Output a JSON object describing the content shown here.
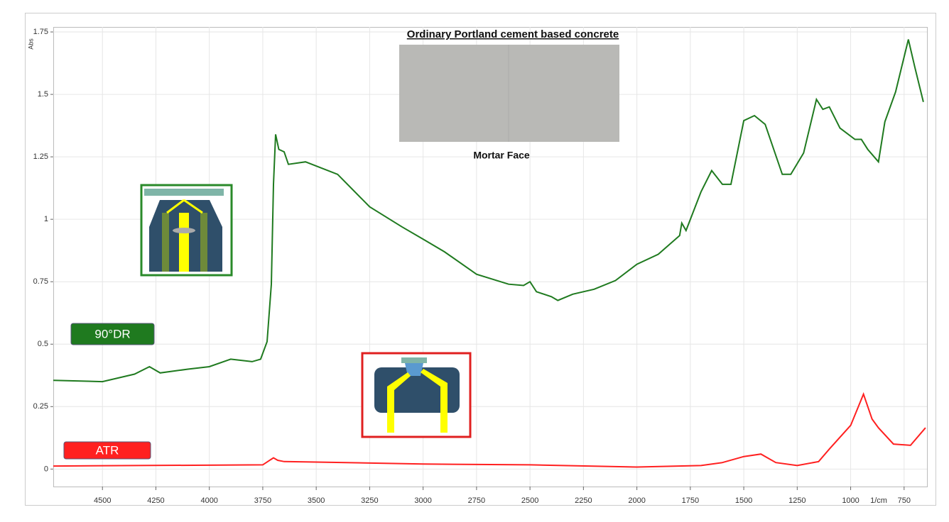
{
  "chart_data": {
    "type": "line",
    "title": "Ordinary Portland cement based concrete",
    "annotation": "Mortar Face",
    "y_label": "Abs",
    "x_label": "1/cm",
    "xlim": [
      4730,
      643
    ],
    "ylim": [
      -0.07,
      1.77
    ],
    "xticks": [
      4500,
      4250,
      4000,
      3750,
      3500,
      3250,
      3000,
      2750,
      2500,
      2250,
      2000,
      1750,
      1500,
      1250,
      1000,
      750
    ],
    "yticks": [
      0,
      0.25,
      0.5,
      0.75,
      1,
      1.25,
      1.5,
      1.75
    ],
    "grid": true,
    "series": [
      {
        "name": "90°DR",
        "color": "#1f7a1f",
        "x": [
          4730,
          4500,
          4350,
          4280,
          4230,
          4100,
          4000,
          3900,
          3800,
          3760,
          3730,
          3710,
          3700,
          3690,
          3675,
          3650,
          3630,
          3550,
          3400,
          3250,
          3100,
          3000,
          2900,
          2750,
          2600,
          2530,
          2500,
          2470,
          2400,
          2370,
          2300,
          2200,
          2100,
          2000,
          1900,
          1800,
          1790,
          1770,
          1700,
          1650,
          1600,
          1560,
          1500,
          1450,
          1400,
          1320,
          1280,
          1220,
          1160,
          1130,
          1100,
          1050,
          980,
          950,
          920,
          870,
          840,
          790,
          730,
          700,
          660
        ],
        "values": [
          0.355,
          0.35,
          0.38,
          0.41,
          0.385,
          0.4,
          0.41,
          0.44,
          0.43,
          0.44,
          0.51,
          0.74,
          1.14,
          1.34,
          1.28,
          1.27,
          1.22,
          1.23,
          1.18,
          1.05,
          0.97,
          0.92,
          0.87,
          0.78,
          0.74,
          0.735,
          0.75,
          0.71,
          0.69,
          0.675,
          0.7,
          0.72,
          0.755,
          0.82,
          0.86,
          0.935,
          0.985,
          0.955,
          1.11,
          1.195,
          1.14,
          1.14,
          1.395,
          1.415,
          1.38,
          1.18,
          1.18,
          1.265,
          1.48,
          1.44,
          1.45,
          1.365,
          1.32,
          1.32,
          1.28,
          1.23,
          1.39,
          1.51,
          1.72,
          1.61,
          1.47
        ]
      },
      {
        "name": "ATR",
        "color": "#ff2020",
        "x": [
          4730,
          3750,
          3700,
          3680,
          3650,
          3500,
          3000,
          2500,
          2000,
          1700,
          1600,
          1500,
          1420,
          1350,
          1250,
          1150,
          1100,
          1000,
          940,
          900,
          870,
          800,
          720,
          650
        ],
        "values": [
          0.012,
          0.017,
          0.045,
          0.035,
          0.03,
          0.028,
          0.02,
          0.017,
          0.008,
          0.014,
          0.026,
          0.05,
          0.06,
          0.026,
          0.014,
          0.03,
          0.08,
          0.175,
          0.3,
          0.2,
          0.165,
          0.1,
          0.095,
          0.165
        ]
      }
    ]
  }
}
